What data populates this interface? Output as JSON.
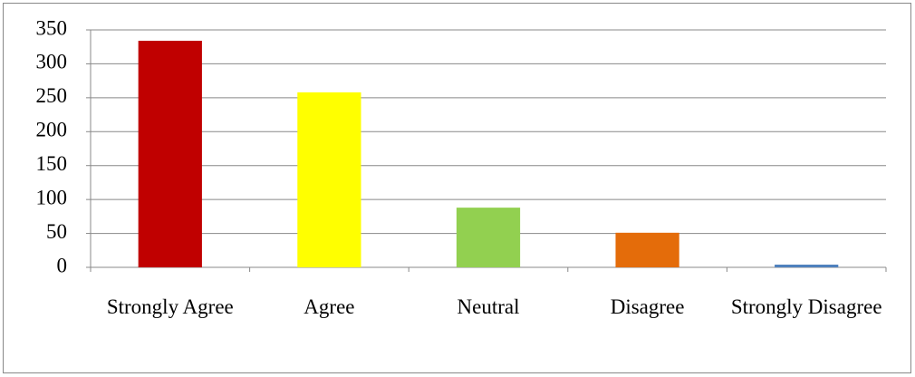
{
  "chart_data": {
    "type": "bar",
    "categories": [
      "Strongly Agree",
      "Agree",
      "Neutral",
      "Disagree",
      "Strongly Disagree"
    ],
    "values": [
      334,
      258,
      88,
      51,
      4
    ],
    "colors": [
      "#c00000",
      "#ffff00",
      "#92d050",
      "#e46c0a",
      "#4f81bd"
    ],
    "ylim": [
      0,
      350
    ],
    "yticks": [
      0,
      50,
      100,
      150,
      200,
      250,
      300,
      350
    ],
    "grid": true
  }
}
